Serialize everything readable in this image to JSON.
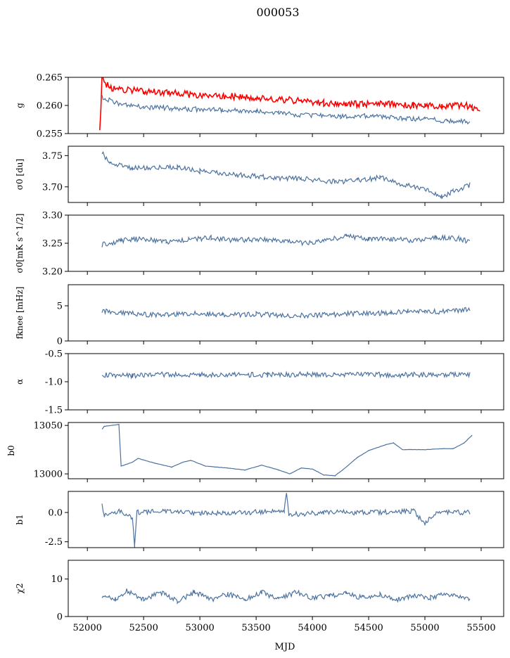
{
  "title": "000053",
  "xlabel": "MJD",
  "xticks": [
    "52000",
    "52500",
    "53000",
    "53500",
    "54000",
    "54500",
    "55000",
    "55500"
  ],
  "colors": {
    "series": "#4c72a0",
    "highlight": "#ff0000",
    "axes": "#000000"
  },
  "chart_data": [
    {
      "type": "line",
      "id": "g",
      "ylabel": "g",
      "ylim": [
        0.255,
        0.265
      ],
      "yticks": [
        "0.265",
        "0.260",
        "0.255"
      ],
      "series": [
        {
          "color": "#ff0000",
          "points": [
            [
              52110,
              0.255
            ],
            [
              52130,
              0.2648
            ],
            [
              52200,
              0.263
            ],
            [
              52500,
              0.2625
            ],
            [
              52800,
              0.2622
            ],
            [
              53000,
              0.2617
            ],
            [
              53200,
              0.2617
            ],
            [
              53500,
              0.2614
            ],
            [
              53700,
              0.2611
            ],
            [
              53900,
              0.2608
            ],
            [
              54100,
              0.2604
            ],
            [
              54300,
              0.2603
            ],
            [
              54500,
              0.2602
            ],
            [
              54700,
              0.2603
            ],
            [
              54900,
              0.26
            ],
            [
              55000,
              0.2599
            ],
            [
              55150,
              0.2598
            ],
            [
              55250,
              0.2599
            ],
            [
              55350,
              0.2602
            ],
            [
              55420,
              0.2595
            ],
            [
              55490,
              0.259
            ]
          ]
        },
        {
          "color": "#4c72a0",
          "points": [
            [
              52130,
              0.2615
            ],
            [
              52250,
              0.2605
            ],
            [
              52500,
              0.2597
            ],
            [
              52750,
              0.2595
            ],
            [
              53000,
              0.2593
            ],
            [
              53200,
              0.2592
            ],
            [
              53500,
              0.259
            ],
            [
              53700,
              0.2586
            ],
            [
              54000,
              0.2582
            ],
            [
              54250,
              0.258
            ],
            [
              54500,
              0.2582
            ],
            [
              54750,
              0.2577
            ],
            [
              55000,
              0.2575
            ],
            [
              55200,
              0.2573
            ],
            [
              55400,
              0.2571
            ]
          ]
        }
      ]
    },
    {
      "type": "line",
      "id": "sigma0-du",
      "ylabel": "σ0 [du]",
      "ylim": [
        3.675,
        3.765
      ],
      "yticks": [
        "3.75",
        "3.70"
      ],
      "series": [
        {
          "color": "#4c72a0",
          "points": [
            [
              52130,
              3.755
            ],
            [
              52200,
              3.738
            ],
            [
              52400,
              3.73
            ],
            [
              52800,
              3.731
            ],
            [
              53000,
              3.725
            ],
            [
              53300,
              3.72
            ],
            [
              53600,
              3.715
            ],
            [
              53900,
              3.713
            ],
            [
              54200,
              3.708
            ],
            [
              54400,
              3.71
            ],
            [
              54600,
              3.715
            ],
            [
              54800,
              3.703
            ],
            [
              55000,
              3.698
            ],
            [
              55150,
              3.684
            ],
            [
              55250,
              3.693
            ],
            [
              55400,
              3.703
            ]
          ]
        }
      ]
    },
    {
      "type": "line",
      "id": "sigma0-mk",
      "ylabel": "σ0[mK s^1/2]",
      "ylim": [
        3.2,
        3.3
      ],
      "yticks": [
        "3.30",
        "3.25",
        "3.20"
      ],
      "series": [
        {
          "color": "#4c72a0",
          "points": [
            [
              52130,
              3.247
            ],
            [
              52300,
              3.255
            ],
            [
              52500,
              3.258
            ],
            [
              52700,
              3.252
            ],
            [
              52900,
              3.256
            ],
            [
              53100,
              3.26
            ],
            [
              53300,
              3.255
            ],
            [
              53500,
              3.257
            ],
            [
              53700,
              3.254
            ],
            [
              53900,
              3.25
            ],
            [
              54100,
              3.255
            ],
            [
              54300,
              3.262
            ],
            [
              54500,
              3.258
            ],
            [
              54700,
              3.257
            ],
            [
              54900,
              3.255
            ],
            [
              55100,
              3.26
            ],
            [
              55300,
              3.258
            ],
            [
              55400,
              3.252
            ]
          ]
        }
      ]
    },
    {
      "type": "line",
      "id": "fknee",
      "ylabel": "fknee [mHz]",
      "ylim": [
        0,
        8
      ],
      "yticks": [
        "5",
        "0"
      ],
      "series": [
        {
          "color": "#4c72a0",
          "points": [
            [
              52130,
              4.3
            ],
            [
              52300,
              4.0
            ],
            [
              52600,
              3.7
            ],
            [
              52900,
              3.9
            ],
            [
              53200,
              3.7
            ],
            [
              53500,
              3.8
            ],
            [
              53800,
              3.6
            ],
            [
              54100,
              3.7
            ],
            [
              54400,
              3.9
            ],
            [
              54700,
              4.0
            ],
            [
              54850,
              4.2
            ],
            [
              55000,
              4.1
            ],
            [
              55200,
              4.2
            ],
            [
              55400,
              4.5
            ]
          ]
        }
      ]
    },
    {
      "type": "line",
      "id": "alpha",
      "ylabel": "α",
      "ylim": [
        -1.5,
        -0.5
      ],
      "yticks": [
        "-0.5",
        "-1.0",
        "-1.5"
      ],
      "series": [
        {
          "color": "#4c72a0",
          "points": [
            [
              52130,
              -0.88
            ],
            [
              52400,
              -0.89
            ],
            [
              52700,
              -0.87
            ],
            [
              53000,
              -0.88
            ],
            [
              53300,
              -0.87
            ],
            [
              53600,
              -0.88
            ],
            [
              53900,
              -0.87
            ],
            [
              54200,
              -0.88
            ],
            [
              54500,
              -0.87
            ],
            [
              54800,
              -0.88
            ],
            [
              55100,
              -0.87
            ],
            [
              55400,
              -0.87
            ]
          ]
        }
      ]
    },
    {
      "type": "line",
      "id": "b0",
      "ylabel": "b0",
      "ylim": [
        12995,
        13053
      ],
      "yticks": [
        "13050",
        "13000"
      ],
      "series": [
        {
          "color": "#4c72a0",
          "points": [
            [
              52130,
              13046
            ],
            [
              52150,
              13049
            ],
            [
              52280,
              13051
            ],
            [
              52300,
              13008
            ],
            [
              52400,
              13012
            ],
            [
              52450,
              13016
            ],
            [
              52600,
              13011
            ],
            [
              52750,
              13007
            ],
            [
              52850,
              13012
            ],
            [
              52920,
              13014
            ],
            [
              53050,
              13008
            ],
            [
              53250,
              13006
            ],
            [
              53400,
              13004
            ],
            [
              53550,
              13009
            ],
            [
              53700,
              13004
            ],
            [
              53800,
              13000
            ],
            [
              53900,
              13006
            ],
            [
              54000,
              13005
            ],
            [
              54100,
              12999
            ],
            [
              54200,
              12998
            ],
            [
              54300,
              13007
            ],
            [
              54400,
              13017
            ],
            [
              54500,
              13024
            ],
            [
              54650,
              13030
            ],
            [
              54720,
              13032
            ],
            [
              54800,
              13025
            ],
            [
              55000,
              13025
            ],
            [
              55150,
              13026
            ],
            [
              55250,
              13026
            ],
            [
              55350,
              13032
            ],
            [
              55420,
              13040
            ]
          ]
        }
      ]
    },
    {
      "type": "line",
      "id": "b1",
      "ylabel": "b1",
      "ylim": [
        -3.0,
        1.8
      ],
      "yticks": [
        "0.0",
        "-2.5"
      ],
      "series": [
        {
          "color": "#4c72a0",
          "points": [
            [
              52130,
              0.8
            ],
            [
              52150,
              -0.2
            ],
            [
              52300,
              0.1
            ],
            [
              52400,
              -0.5
            ],
            [
              52420,
              -2.9
            ],
            [
              52440,
              0.0
            ],
            [
              52700,
              0.1
            ],
            [
              53000,
              -0.1
            ],
            [
              53400,
              0.0
            ],
            [
              53750,
              0.1
            ],
            [
              53770,
              1.6
            ],
            [
              53790,
              -0.2
            ],
            [
              54100,
              0.0
            ],
            [
              54500,
              0.0
            ],
            [
              54900,
              0.1
            ],
            [
              55000,
              -0.9
            ],
            [
              55100,
              0.0
            ],
            [
              55400,
              0.0
            ]
          ]
        }
      ]
    },
    {
      "type": "line",
      "id": "chi2",
      "ylabel": "χ2",
      "ylim": [
        0,
        15
      ],
      "yticks": [
        "10",
        "0"
      ],
      "series": [
        {
          "color": "#4c72a0",
          "points": [
            [
              52130,
              5.5
            ],
            [
              52250,
              4.5
            ],
            [
              52350,
              7.0
            ],
            [
              52500,
              4.5
            ],
            [
              52650,
              6.5
            ],
            [
              52800,
              4.0
            ],
            [
              52950,
              6.5
            ],
            [
              53100,
              4.5
            ],
            [
              53250,
              6.0
            ],
            [
              53400,
              4.5
            ],
            [
              53550,
              6.5
            ],
            [
              53700,
              4.5
            ],
            [
              53850,
              6.5
            ],
            [
              54000,
              5.0
            ],
            [
              54150,
              5.5
            ],
            [
              54300,
              6.0
            ],
            [
              54450,
              5.0
            ],
            [
              54600,
              6.0
            ],
            [
              54750,
              4.5
            ],
            [
              54900,
              5.5
            ],
            [
              55050,
              5.0
            ],
            [
              55200,
              6.0
            ],
            [
              55400,
              4.5
            ]
          ]
        }
      ]
    }
  ]
}
